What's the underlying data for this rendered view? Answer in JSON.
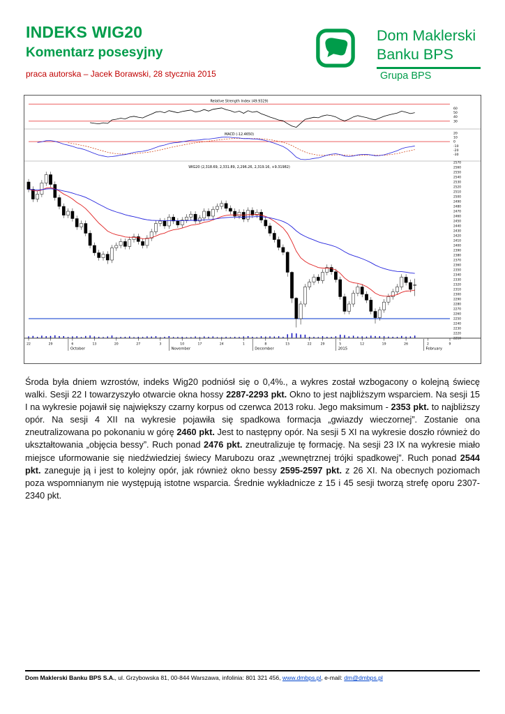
{
  "page": {
    "header": {
      "title": "INDEKS WIG20",
      "subtitle": "Komentarz posesyjny",
      "byline": "praca autorska – Jacek Borawski, 28 stycznia 2015"
    },
    "brand": {
      "name_line1": "Dom Maklerski",
      "name_line2": "Banku BPS",
      "group": "Grupa BPS"
    },
    "footer": {
      "company": "Dom Maklerski Banku BPS S.A.",
      "address": ", ul. Grzybowska 81, 00-844 Warszawa, infolinia: 801 321 456, ",
      "website": "www.dmbps.pl",
      "email_label": ", e-mail: ",
      "email": "dm@dmbps.pl"
    }
  },
  "commentary": {
    "runs": [
      {
        "text": "Środa była dniem wzrostów, indeks Wig20 podniósł się o 0,4%., a wykres został wzbogacony o kolejną świecę walki. Sesji 22 I towarzyszyło otwarcie okna hossy "
      },
      {
        "text": "2287-2293 pkt.",
        "bold": true
      },
      {
        "text": " Okno to jest najbliższym wsparciem. Na sesji 15 I na wykresie pojawił się największy czarny korpus od czerwca 2013 roku. Jego maksimum - "
      },
      {
        "text": "2353 pkt.",
        "bold": true
      },
      {
        "text": " to najbliższy opór. Na sesji 4 XII na wykresie pojawiła się spadkowa formacja „gwiazdy wieczornej”. Zostanie ona zneutralizowana po pokonaniu w górę "
      },
      {
        "text": "2460 pkt.",
        "bold": true
      },
      {
        "text": " Jest to następny opór. Na sesji 5 XI na wykresie doszło również do ukształtowania „objęcia bessy”. Ruch ponad "
      },
      {
        "text": "2476 pkt.",
        "bold": true
      },
      {
        "text": " zneutralizuje tę formację. Na sesji 23 IX na wykresie miało miejsce uformowanie się niedźwiedziej świecy Marubozu oraz „wewnętrznej trójki spadkowej”. Ruch ponad "
      },
      {
        "text": "2544 pkt.",
        "bold": true
      },
      {
        "text": " zaneguje ją i jest to kolejny opór, jak również okno bessy "
      },
      {
        "text": "2595-2597 pkt.",
        "bold": true
      },
      {
        "text": " z 26 XI. Na obecnych poziomach poza wspomnianym nie występują istotne wsparcia. Średnie wykładnicze z 15 i 45 sesji tworzą strefę oporu 2307-2340 pkt."
      }
    ]
  },
  "chart_data": {
    "type": "candlestick",
    "title": "WIG20 daily candlestick chart with RSI and MACD panels",
    "total_slots": 97,
    "panels": [
      {
        "name": "rsi",
        "label": "Relative Strength Index (49.9329)",
        "ylim": [
          15,
          85
        ],
        "red_lines": [
          70,
          30
        ],
        "tick_labels": [
          60,
          50,
          40,
          30
        ]
      },
      {
        "name": "macd",
        "label": "MACD (-12.4650)",
        "ylim": [
          -42,
          26
        ],
        "red_lines": [
          0
        ],
        "tick_labels": [
          20,
          10,
          0,
          -10,
          -20,
          -30
        ]
      },
      {
        "name": "price",
        "label": "WIG20 (2,318.69, 2,331.89, 2,296.26, 2,319.16, +9.31982)",
        "ylim": [
          2210,
          2570
        ],
        "tick_step": 10,
        "support_line": 2250,
        "ema_fast": 15,
        "ema_slow": 45
      }
    ],
    "candles": [
      [
        2530,
        2536,
        2509,
        2515
      ],
      [
        2515,
        2521,
        2489,
        2495
      ],
      [
        2495,
        2511,
        2489,
        2505
      ],
      [
        2505,
        2534,
        2499,
        2528
      ],
      [
        2528,
        2551,
        2522,
        2545
      ],
      [
        2545,
        2551,
        2519,
        2525
      ],
      [
        2525,
        2531,
        2492,
        2498
      ],
      [
        2498,
        2504,
        2474,
        2480
      ],
      [
        2480,
        2486,
        2456,
        2462
      ],
      [
        2462,
        2476,
        2456,
        2470
      ],
      [
        2470,
        2476,
        2449,
        2455
      ],
      [
        2455,
        2461,
        2432,
        2438
      ],
      [
        2438,
        2451,
        2432,
        2445
      ],
      [
        2445,
        2451,
        2419,
        2425
      ],
      [
        2425,
        2431,
        2394,
        2400
      ],
      [
        2400,
        2406,
        2379,
        2385
      ],
      [
        2385,
        2391,
        2369,
        2375
      ],
      [
        2375,
        2388,
        2369,
        2382
      ],
      [
        2382,
        2388,
        2362,
        2370
      ],
      [
        2370,
        2401,
        2364,
        2395
      ],
      [
        2395,
        2406,
        2389,
        2400
      ],
      [
        2400,
        2414,
        2394,
        2408
      ],
      [
        2408,
        2414,
        2392,
        2398
      ],
      [
        2398,
        2418,
        2392,
        2412
      ],
      [
        2412,
        2424,
        2406,
        2418
      ],
      [
        2418,
        2424,
        2402,
        2408
      ],
      [
        2408,
        2414,
        2394,
        2400
      ],
      [
        2400,
        2421,
        2394,
        2415
      ],
      [
        2415,
        2434,
        2409,
        2428
      ],
      [
        2428,
        2451,
        2422,
        2445
      ],
      [
        2445,
        2456,
        2439,
        2450
      ],
      [
        2450,
        2456,
        2434,
        2440
      ],
      [
        2440,
        2464,
        2434,
        2458
      ],
      [
        2458,
        2464,
        2444,
        2450
      ],
      [
        2450,
        2456,
        2436,
        2442
      ],
      [
        2442,
        2458,
        2436,
        2452
      ],
      [
        2452,
        2464,
        2446,
        2458
      ],
      [
        2458,
        2470,
        2452,
        2464
      ],
      [
        2464,
        2470,
        2444,
        2450
      ],
      [
        2450,
        2462,
        2444,
        2456
      ],
      [
        2456,
        2476,
        2450,
        2470
      ],
      [
        2470,
        2476,
        2454,
        2460
      ],
      [
        2460,
        2480,
        2454,
        2474
      ],
      [
        2474,
        2486,
        2468,
        2480
      ],
      [
        2480,
        2492,
        2474,
        2486
      ],
      [
        2486,
        2492,
        2470,
        2476
      ],
      [
        2476,
        2482,
        2464,
        2470
      ],
      [
        2470,
        2476,
        2454,
        2460
      ],
      [
        2460,
        2474,
        2454,
        2468
      ],
      [
        2468,
        2474,
        2448,
        2454
      ],
      [
        2454,
        2478,
        2448,
        2472
      ],
      [
        2472,
        2478,
        2456,
        2462
      ],
      [
        2462,
        2474,
        2456,
        2468
      ],
      [
        2468,
        2474,
        2446,
        2452
      ],
      [
        2452,
        2458,
        2434,
        2440
      ],
      [
        2440,
        2446,
        2419,
        2425
      ],
      [
        2425,
        2431,
        2406,
        2412
      ],
      [
        2412,
        2418,
        2390,
        2396
      ],
      [
        2396,
        2402,
        2380,
        2386
      ],
      [
        2386,
        2388,
        2336,
        2345
      ],
      [
        2345,
        2347,
        2282,
        2292
      ],
      [
        2292,
        2294,
        2232,
        2250
      ],
      [
        2250,
        2286,
        2238,
        2280
      ],
      [
        2280,
        2321,
        2274,
        2315
      ],
      [
        2315,
        2331,
        2309,
        2325
      ],
      [
        2325,
        2341,
        2319,
        2335
      ],
      [
        2335,
        2341,
        2322,
        2328
      ],
      [
        2328,
        2351,
        2322,
        2345
      ],
      [
        2345,
        2361,
        2339,
        2355
      ],
      [
        2355,
        2361,
        2340,
        2346
      ],
      [
        2346,
        2352,
        2324,
        2330
      ],
      [
        2330,
        2336,
        2289,
        2295
      ],
      [
        2295,
        2301,
        2259,
        2265
      ],
      [
        2265,
        2286,
        2259,
        2280
      ],
      [
        2280,
        2308,
        2274,
        2302
      ],
      [
        2302,
        2321,
        2296,
        2315
      ],
      [
        2315,
        2321,
        2294,
        2300
      ],
      [
        2300,
        2306,
        2282,
        2288
      ],
      [
        2288,
        2294,
        2259,
        2265
      ],
      [
        2265,
        2271,
        2240,
        2252
      ],
      [
        2252,
        2274,
        2246,
        2268
      ],
      [
        2268,
        2290,
        2262,
        2284
      ],
      [
        2284,
        2301,
        2278,
        2295
      ],
      [
        2295,
        2311,
        2289,
        2305
      ],
      [
        2305,
        2321,
        2299,
        2315
      ],
      [
        2315,
        2341,
        2309,
        2335
      ],
      [
        2335,
        2341,
        2318,
        2324
      ],
      [
        2324,
        2330,
        2304,
        2310
      ],
      [
        2318.69,
        2331.89,
        2296.26,
        2319.16
      ]
    ],
    "x_ticks": [
      {
        "label": "22",
        "i": 0
      },
      {
        "label": "29",
        "i": 5
      },
      {
        "label": "6",
        "i": 10
      },
      {
        "label": "13",
        "i": 15
      },
      {
        "label": "20",
        "i": 20
      },
      {
        "label": "27",
        "i": 25
      },
      {
        "label": "3",
        "i": 30
      },
      {
        "label": "10",
        "i": 35
      },
      {
        "label": "17",
        "i": 39
      },
      {
        "label": "24",
        "i": 44
      },
      {
        "label": "1",
        "i": 49
      },
      {
        "label": "8",
        "i": 54
      },
      {
        "label": "15",
        "i": 59
      },
      {
        "label": "22",
        "i": 64
      },
      {
        "label": "29",
        "i": 67
      },
      {
        "label": "5",
        "i": 71
      },
      {
        "label": "12",
        "i": 76
      },
      {
        "label": "19",
        "i": 81
      },
      {
        "label": "26",
        "i": 86
      },
      {
        "label": "2",
        "i": 91
      },
      {
        "label": "9",
        "i": 96
      }
    ],
    "month_labels": [
      {
        "label": "October",
        "i": 10
      },
      {
        "label": "November",
        "i": 33
      },
      {
        "label": "December",
        "i": 52
      },
      {
        "label": "2015",
        "i": 71
      },
      {
        "label": "February",
        "i": 91
      }
    ],
    "colors": {
      "ema_fast": "#E02020",
      "ema_slow": "#2222DD",
      "support": "#0033CC",
      "band_lines": "#E00000",
      "macd_line": "#2222DD",
      "signal_line": "#CC3300",
      "volume": "#0000BB"
    }
  }
}
